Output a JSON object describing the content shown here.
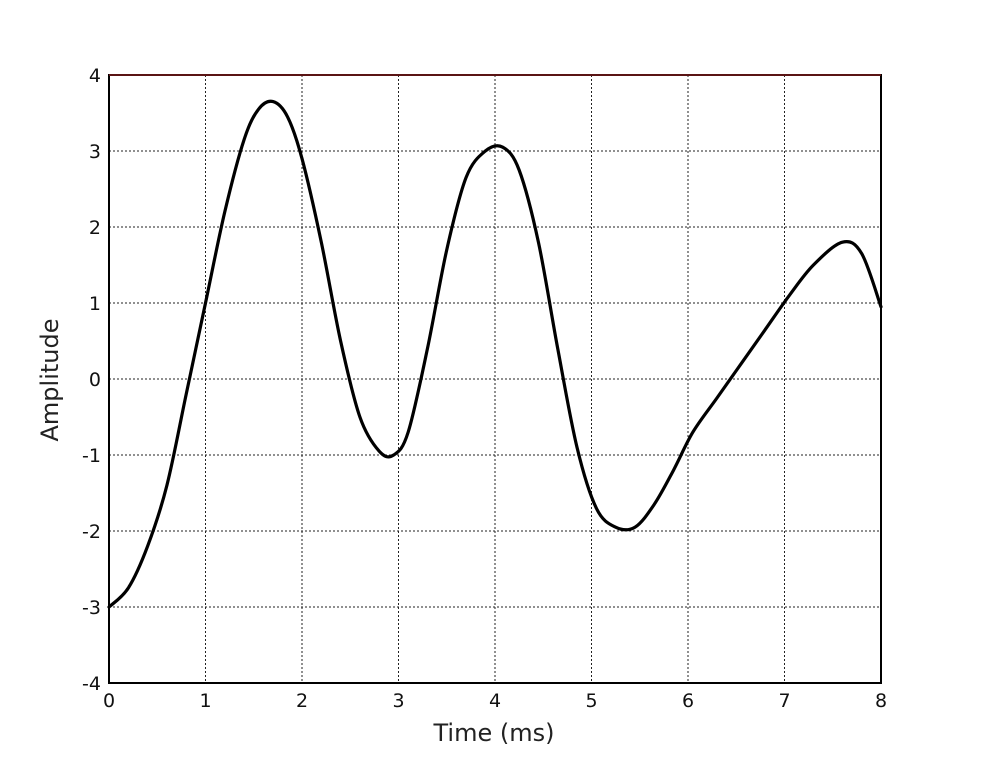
{
  "chart_data": {
    "type": "line",
    "title": "",
    "xlabel": "Time (ms)",
    "ylabel": "Amplitude",
    "xlim": [
      0,
      8
    ],
    "ylim": [
      -4,
      4
    ],
    "x_ticks": [
      "0",
      "1",
      "2",
      "3",
      "4",
      "5",
      "6",
      "7",
      "8"
    ],
    "y_ticks": [
      "4",
      "3",
      "2",
      "1",
      "0",
      "-1",
      "-2",
      "-3",
      "-4"
    ],
    "grid": true,
    "line_color": "#000000",
    "series": [
      {
        "x": [
          0,
          0.2,
          0.4,
          0.6,
          0.8,
          1.0,
          1.2,
          1.4,
          1.55,
          1.7,
          1.85,
          2.0,
          2.2,
          2.4,
          2.6,
          2.8,
          2.95,
          3.1,
          3.3,
          3.5,
          3.7,
          3.9,
          4.08,
          4.25,
          4.45,
          4.65,
          4.85,
          5.05,
          5.25,
          5.45,
          5.65,
          5.85,
          6.05,
          6.3,
          6.55,
          6.8,
          7.05,
          7.3,
          7.6,
          7.8,
          8.0
        ],
        "y": [
          -3.0,
          -2.75,
          -2.2,
          -1.4,
          -0.2,
          1.0,
          2.2,
          3.15,
          3.55,
          3.65,
          3.45,
          2.9,
          1.8,
          0.5,
          -0.5,
          -0.95,
          -1.0,
          -0.7,
          0.4,
          1.7,
          2.65,
          3.0,
          3.05,
          2.75,
          1.8,
          0.4,
          -0.9,
          -1.7,
          -1.95,
          -1.95,
          -1.65,
          -1.2,
          -0.7,
          -0.25,
          0.2,
          0.65,
          1.1,
          1.5,
          1.8,
          1.65,
          0.95
        ]
      }
    ]
  }
}
